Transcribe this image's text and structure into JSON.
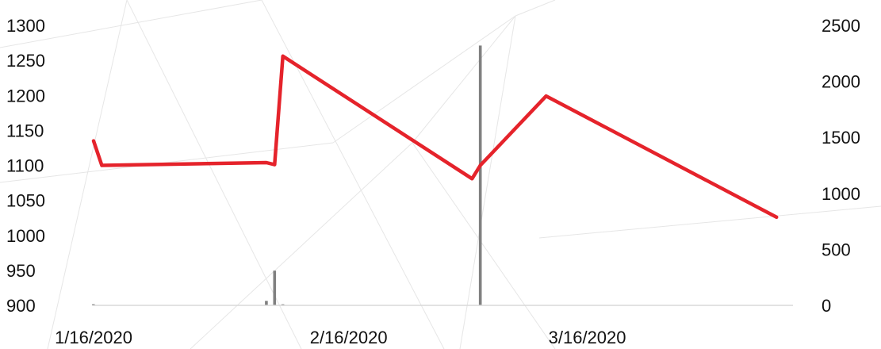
{
  "chart_data": {
    "type": "line",
    "title": "",
    "xlabel": "",
    "ylabel": "",
    "y2label": "",
    "x_ticks": [
      "1/16/2020",
      "2/16/2020",
      "3/16/2020"
    ],
    "x_range": [
      "2020-01-16",
      "2020-04-10"
    ],
    "ylim": [
      900,
      1300
    ],
    "y_ticks": [
      900,
      950,
      1000,
      1050,
      1100,
      1150,
      1200,
      1250,
      1300
    ],
    "y2lim": [
      0,
      2500
    ],
    "y2_ticks": [
      0,
      500,
      1000,
      1500,
      2000,
      2500
    ],
    "grid": false,
    "legend": "none",
    "series": [
      {
        "axis": "left",
        "type": "line",
        "color": "#e5232b",
        "points": [
          {
            "x": "2020-01-16",
            "y": 1135
          },
          {
            "x": "2020-01-17",
            "y": 1100
          },
          {
            "x": "2020-02-06",
            "y": 1104
          },
          {
            "x": "2020-02-07",
            "y": 1101
          },
          {
            "x": "2020-02-08",
            "y": 1256
          },
          {
            "x": "2020-03-02",
            "y": 1081
          },
          {
            "x": "2020-03-03",
            "y": 1100
          },
          {
            "x": "2020-03-11",
            "y": 1199
          },
          {
            "x": "2020-04-08",
            "y": 1026
          }
        ]
      },
      {
        "axis": "right",
        "type": "bar",
        "color": "#808080",
        "points": [
          {
            "x": "2020-01-16",
            "y": 10
          },
          {
            "x": "2020-02-06",
            "y": 40
          },
          {
            "x": "2020-02-07",
            "y": 310
          },
          {
            "x": "2020-02-08",
            "y": 10
          },
          {
            "x": "2020-03-03",
            "y": 2320
          }
        ]
      }
    ]
  }
}
